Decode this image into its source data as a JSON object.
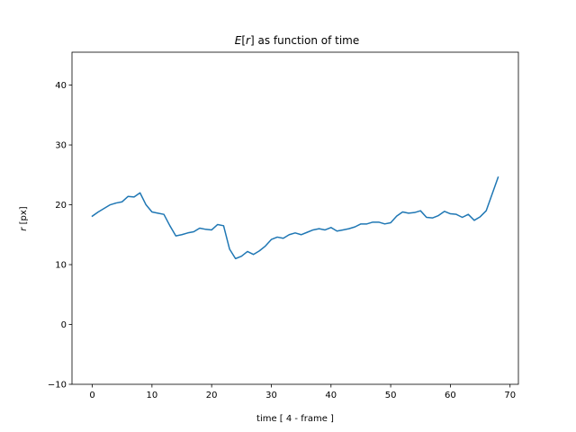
{
  "chart_data": {
    "type": "line",
    "title_main": "E",
    "title_bracket_open": "[",
    "title_var": "r",
    "title_bracket_close": "]",
    "title_rest": " as function of time",
    "xlabel": "time [ 4 - frame ]",
    "ylabel_var": "r",
    "ylabel_unit": " [px]",
    "xlim": [
      -3.4,
      71.4
    ],
    "ylim": [
      -10,
      45.5
    ],
    "xticks": [
      0,
      10,
      20,
      30,
      40,
      50,
      60,
      70
    ],
    "yticks": [
      -10,
      0,
      10,
      20,
      30,
      40
    ],
    "grid": false,
    "series": [
      {
        "color": "#1f77b4",
        "x": [
          0,
          1,
          2,
          3,
          4,
          5,
          6,
          7,
          8,
          9,
          10,
          11,
          12,
          13,
          14,
          15,
          16,
          17,
          18,
          19,
          20,
          21,
          22,
          23,
          24,
          25,
          26,
          27,
          28,
          29,
          30,
          31,
          32,
          33,
          34,
          35,
          36,
          37,
          38,
          39,
          40,
          41,
          42,
          43,
          44,
          45,
          46,
          47,
          48,
          49,
          50,
          51,
          52,
          53,
          54,
          55,
          56,
          57,
          58,
          59,
          60,
          61,
          62,
          63,
          64,
          65,
          66,
          67,
          68
        ],
        "y": [
          18.1,
          18.8,
          19.4,
          20.0,
          20.3,
          20.5,
          21.4,
          21.3,
          22.0,
          20.0,
          18.8,
          18.6,
          18.4,
          16.5,
          14.8,
          15.0,
          15.3,
          15.5,
          16.1,
          15.9,
          15.8,
          16.7,
          16.5,
          12.6,
          11.0,
          11.4,
          12.2,
          11.7,
          12.3,
          13.1,
          14.2,
          14.6,
          14.4,
          15.0,
          15.3,
          15.0,
          15.4,
          15.8,
          16.0,
          15.8,
          16.2,
          15.6,
          15.8,
          16.0,
          16.3,
          16.8,
          16.8,
          17.1,
          17.1,
          16.8,
          17.0,
          18.1,
          18.8,
          18.6,
          18.7,
          19.0,
          17.9,
          17.8,
          18.2,
          18.9,
          18.5,
          18.4,
          17.9,
          18.4,
          17.4,
          18.0,
          19.0,
          21.8,
          24.6
        ]
      }
    ]
  }
}
